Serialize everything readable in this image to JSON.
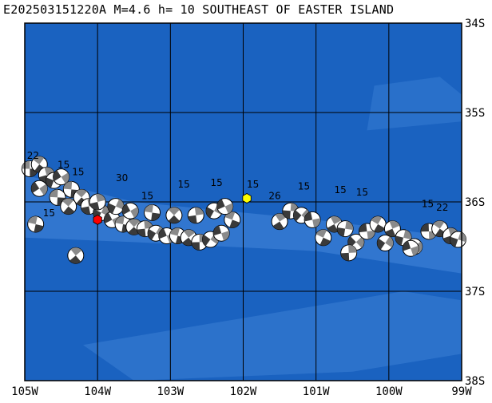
{
  "title": "E202503151220A  M=4.6  h=  10  SOUTHEAST OF EASTER ISLAND",
  "colors": {
    "ocean_deep": "#1a62c0",
    "ocean_ridge": "#3479d0",
    "grid": "#000000",
    "frame": "#000000",
    "event_marker": "#ffff00",
    "recent_marker": "#ff0000"
  },
  "axes": {
    "x_ticks": [
      "105W",
      "104W",
      "103W",
      "102W",
      "101W",
      "100W",
      "99W"
    ],
    "y_ticks": [
      "34S",
      "35S",
      "36S",
      "37S",
      "38S"
    ]
  },
  "event": {
    "lon": -101.95,
    "lat": -35.96
  },
  "recent": {
    "lon": -104.0,
    "lat": -36.2
  },
  "mechanisms": [
    {
      "lon": -104.93,
      "lat": -35.63
    },
    {
      "lon": -104.8,
      "lat": -35.58
    },
    {
      "lon": -104.7,
      "lat": -35.7
    },
    {
      "lon": -104.6,
      "lat": -35.76
    },
    {
      "lon": -104.5,
      "lat": -35.72
    },
    {
      "lon": -104.36,
      "lat": -35.86
    },
    {
      "lon": -104.22,
      "lat": -35.95
    },
    {
      "lon": -104.12,
      "lat": -36.05
    },
    {
      "lon": -103.95,
      "lat": -36.12
    },
    {
      "lon": -103.8,
      "lat": -36.2
    },
    {
      "lon": -103.65,
      "lat": -36.25
    },
    {
      "lon": -103.5,
      "lat": -36.28
    },
    {
      "lon": -103.35,
      "lat": -36.3
    },
    {
      "lon": -103.2,
      "lat": -36.35
    },
    {
      "lon": -103.05,
      "lat": -36.38
    },
    {
      "lon": -102.9,
      "lat": -36.38
    },
    {
      "lon": -102.75,
      "lat": -36.4
    },
    {
      "lon": -102.6,
      "lat": -36.45
    },
    {
      "lon": -102.45,
      "lat": -36.42
    },
    {
      "lon": -102.3,
      "lat": -36.35
    },
    {
      "lon": -102.15,
      "lat": -36.2
    },
    {
      "lon": -101.5,
      "lat": -36.22
    },
    {
      "lon": -101.35,
      "lat": -36.1
    },
    {
      "lon": -101.2,
      "lat": -36.15
    },
    {
      "lon": -101.05,
      "lat": -36.2
    },
    {
      "lon": -100.9,
      "lat": -36.4
    },
    {
      "lon": -100.75,
      "lat": -36.25
    },
    {
      "lon": -100.6,
      "lat": -36.3
    },
    {
      "lon": -100.45,
      "lat": -36.45
    },
    {
      "lon": -100.3,
      "lat": -36.33
    },
    {
      "lon": -100.15,
      "lat": -36.25
    },
    {
      "lon": -99.95,
      "lat": -36.3
    },
    {
      "lon": -99.8,
      "lat": -36.4
    },
    {
      "lon": -99.65,
      "lat": -36.5
    },
    {
      "lon": -99.45,
      "lat": -36.33
    },
    {
      "lon": -99.3,
      "lat": -36.3
    },
    {
      "lon": -99.15,
      "lat": -36.38
    },
    {
      "lon": -99.05,
      "lat": -36.42
    },
    {
      "lon": -104.8,
      "lat": -35.85
    },
    {
      "lon": -104.55,
      "lat": -35.95
    },
    {
      "lon": -104.4,
      "lat": -36.05
    },
    {
      "lon": -104.0,
      "lat": -36.0
    },
    {
      "lon": -103.75,
      "lat": -36.05
    },
    {
      "lon": -103.55,
      "lat": -36.1
    },
    {
      "lon": -103.25,
      "lat": -36.12
    },
    {
      "lon": -102.95,
      "lat": -36.15
    },
    {
      "lon": -102.65,
      "lat": -36.15
    },
    {
      "lon": -102.4,
      "lat": -36.1
    },
    {
      "lon": -102.25,
      "lat": -36.05
    },
    {
      "lon": -104.85,
      "lat": -36.25
    },
    {
      "lon": -104.3,
      "lat": -36.6
    },
    {
      "lon": -100.55,
      "lat": -36.57
    },
    {
      "lon": -100.05,
      "lat": -36.46
    },
    {
      "lon": -99.7,
      "lat": -36.52
    }
  ],
  "map_labels": [
    {
      "text": "22",
      "lon": -104.97,
      "lat": -35.52
    },
    {
      "text": "15",
      "lon": -104.55,
      "lat": -35.62
    },
    {
      "text": "15",
      "lon": -104.35,
      "lat": -35.7
    },
    {
      "text": "30",
      "lon": -103.75,
      "lat": -35.77
    },
    {
      "text": "15",
      "lon": -103.4,
      "lat": -35.97
    },
    {
      "text": "15",
      "lon": -102.9,
      "lat": -35.84
    },
    {
      "text": "15",
      "lon": -102.45,
      "lat": -35.82
    },
    {
      "text": "15",
      "lon": -101.95,
      "lat": -35.84
    },
    {
      "text": "15",
      "lon": -101.25,
      "lat": -35.86
    },
    {
      "text": "15",
      "lon": -100.75,
      "lat": -35.9
    },
    {
      "text": "15",
      "lon": -100.45,
      "lat": -35.93
    },
    {
      "text": "15",
      "lon": -99.55,
      "lat": -36.06
    },
    {
      "text": "15",
      "lon": -104.75,
      "lat": -36.16
    },
    {
      "text": "26",
      "lon": -101.65,
      "lat": -35.97
    },
    {
      "text": "22",
      "lon": -99.35,
      "lat": -36.1
    }
  ]
}
